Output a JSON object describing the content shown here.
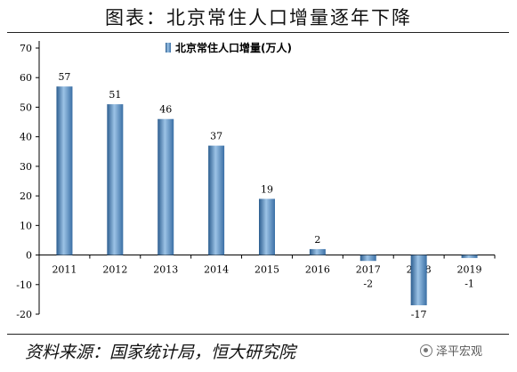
{
  "title": "图表：北京常住人口增量逐年下降",
  "source": "资料来源：国家统计局，恒大研究院",
  "watermark": "泽平宏观",
  "colors": {
    "bar": "#4f86bd",
    "bar_dark": "#2c5d8f",
    "bar_light": "#9cc3e6",
    "axis": "#000000"
  },
  "chart_data": {
    "type": "bar",
    "categories": [
      "2011",
      "2012",
      "2013",
      "2014",
      "2015",
      "2016",
      "2017",
      "2018",
      "2019"
    ],
    "series": [
      {
        "name": "北京常住人口增量(万人)",
        "values": [
          57,
          51,
          46,
          37,
          19,
          2,
          -2,
          -17,
          -1
        ]
      }
    ],
    "data_labels": [
      "57",
      "51",
      "46",
      "37",
      "19",
      "2",
      "-2",
      "-17",
      "-1"
    ],
    "ylim": [
      -20,
      70
    ],
    "yticks": [
      -20,
      -10,
      0,
      10,
      20,
      30,
      40,
      50,
      60,
      70
    ],
    "xlabel": "",
    "ylabel": "",
    "legend_position": "top-center",
    "grid": false
  }
}
